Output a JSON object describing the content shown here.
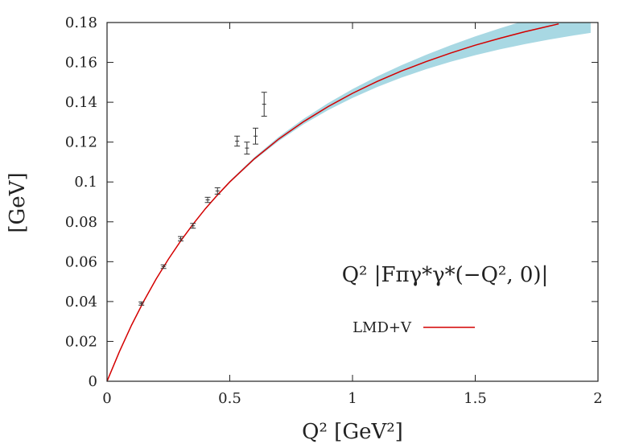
{
  "chart_data": {
    "type": "line",
    "xlabel": "Q² [GeV²]",
    "ylabel": "[GeV]",
    "xlim": [
      0,
      2
    ],
    "ylim": [
      0,
      0.18
    ],
    "x_ticks": [
      0,
      0.5,
      1,
      1.5,
      2
    ],
    "x_tick_labels": [
      "0",
      "0.5",
      "1",
      "1.5",
      "2"
    ],
    "y_ticks": [
      0,
      0.02,
      0.04,
      0.06,
      0.08,
      0.1,
      0.12,
      0.14,
      0.16,
      0.18
    ],
    "y_tick_labels": [
      "0",
      "0.02",
      "0.04",
      "0.06",
      "0.08",
      "0.1",
      "0.12",
      "0.14",
      "0.16",
      "0.18"
    ],
    "annotation": "Q² |Fπγ*γ*(−Q², 0)|",
    "legend_position": "bottom-right",
    "grid": false,
    "series": [
      {
        "name": "LMD+V",
        "kind": "line",
        "color": "#d40000",
        "x": [
          0,
          0.05,
          0.1,
          0.15,
          0.2,
          0.25,
          0.3,
          0.35,
          0.4,
          0.45,
          0.5,
          0.6,
          0.7,
          0.8,
          0.9,
          1.0,
          1.1,
          1.2,
          1.3,
          1.4,
          1.5,
          1.6,
          1.7,
          1.8,
          1.84
        ],
        "y": [
          0,
          0.0148,
          0.0282,
          0.0403,
          0.0513,
          0.0613,
          0.0704,
          0.0788,
          0.0865,
          0.0935,
          0.1,
          0.1116,
          0.1216,
          0.1302,
          0.1378,
          0.1445,
          0.1504,
          0.1557,
          0.1604,
          0.1647,
          0.1686,
          0.1721,
          0.1753,
          0.1782,
          0.1793
        ]
      },
      {
        "name": "",
        "kind": "band",
        "color": "#a8d8e3",
        "x": [
          0.3,
          0.4,
          0.5,
          0.6,
          0.7,
          0.8,
          0.9,
          1.0,
          1.1,
          1.2,
          1.3,
          1.4,
          1.5,
          1.6,
          1.7,
          1.8,
          1.9,
          1.97
        ],
        "y_low": [
          0.0704,
          0.0863,
          0.0996,
          0.111,
          0.1206,
          0.1289,
          0.136,
          0.1422,
          0.1476,
          0.1524,
          0.1566,
          0.1603,
          0.1636,
          0.1665,
          0.1691,
          0.1714,
          0.1735,
          0.1748
        ],
        "y_high": [
          0.0706,
          0.0869,
          0.1006,
          0.1124,
          0.1227,
          0.1316,
          0.1395,
          0.1466,
          0.1529,
          0.1586,
          0.1638,
          0.1686,
          0.173,
          0.1771,
          0.1809,
          0.1845,
          0.188,
          0.19
        ]
      },
      {
        "name": "",
        "kind": "errorbar",
        "color": "#333333",
        "points": [
          {
            "x": 0.14,
            "y": 0.039,
            "err": 0.0008
          },
          {
            "x": 0.23,
            "y": 0.0575,
            "err": 0.0009
          },
          {
            "x": 0.3,
            "y": 0.0715,
            "err": 0.0011
          },
          {
            "x": 0.35,
            "y": 0.078,
            "err": 0.0012
          },
          {
            "x": 0.41,
            "y": 0.091,
            "err": 0.0013
          },
          {
            "x": 0.45,
            "y": 0.0955,
            "err": 0.0016
          },
          {
            "x": 0.53,
            "y": 0.1205,
            "err": 0.0025
          },
          {
            "x": 0.57,
            "y": 0.117,
            "err": 0.003
          },
          {
            "x": 0.605,
            "y": 0.123,
            "err": 0.004
          },
          {
            "x": 0.64,
            "y": 0.139,
            "err": 0.006
          }
        ]
      }
    ]
  }
}
